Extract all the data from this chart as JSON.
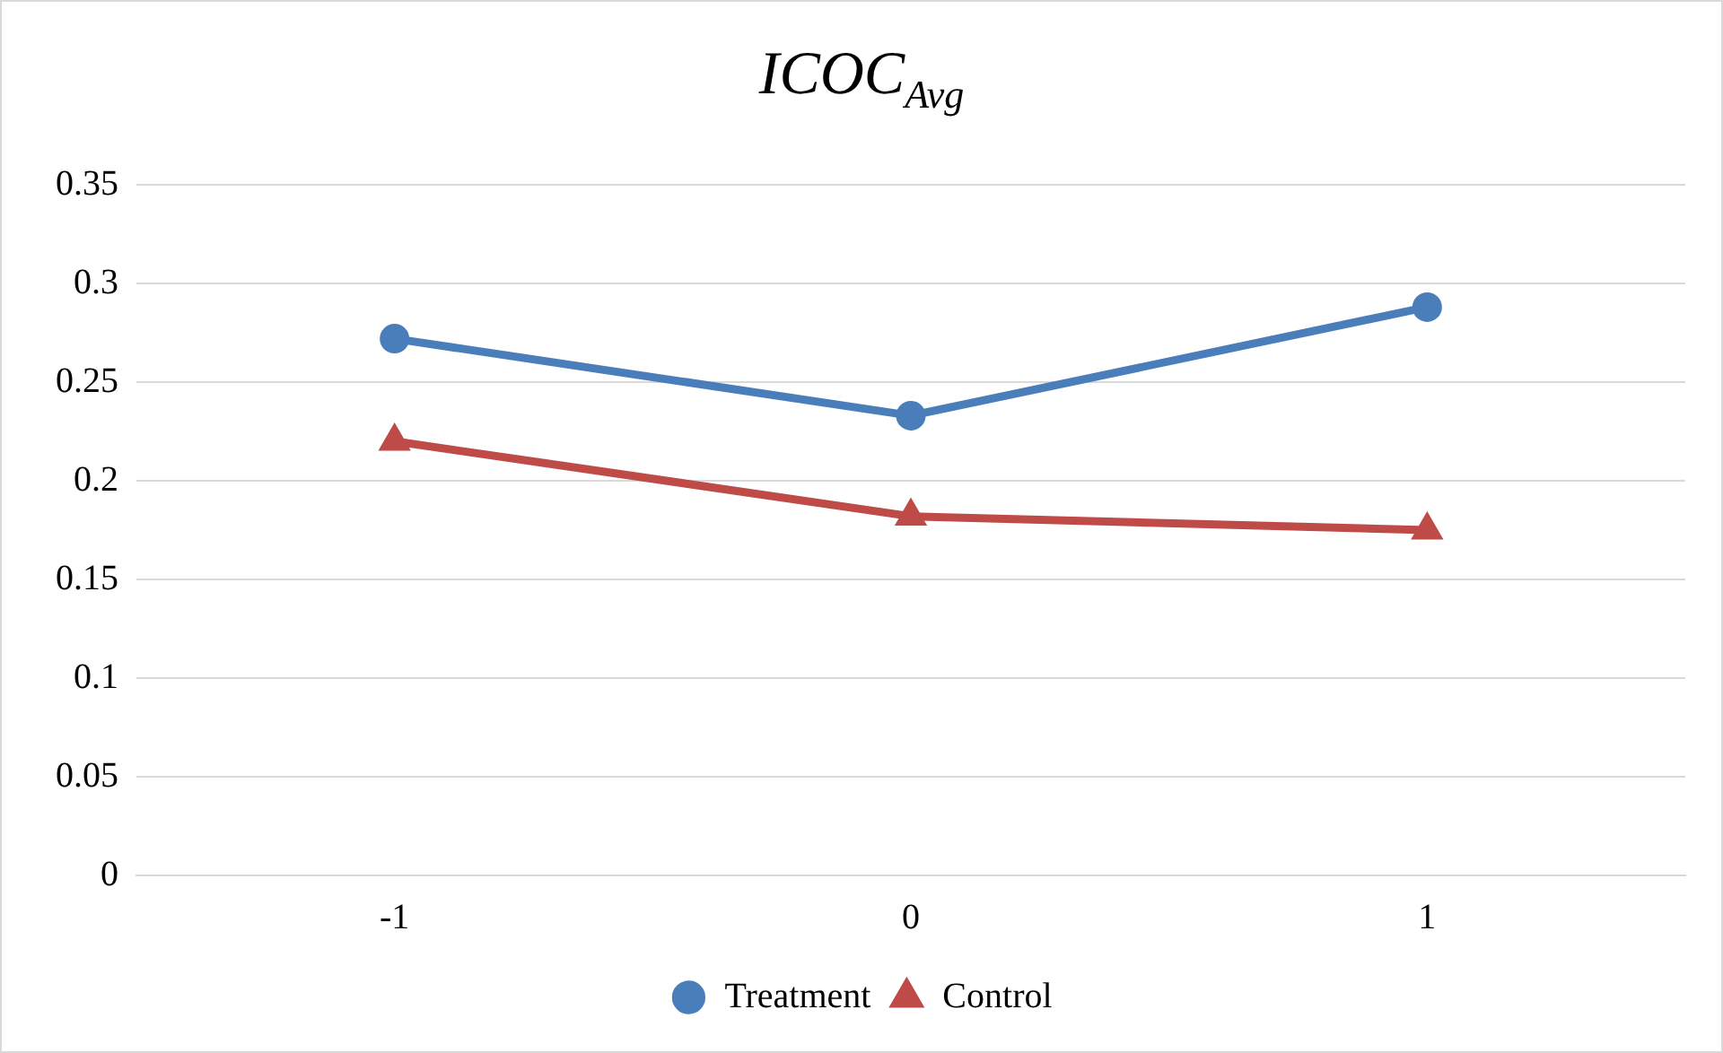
{
  "chart_data": {
    "type": "line",
    "title": "ICOC$_{Avg}$",
    "categories": [
      "-1",
      "0",
      "1"
    ],
    "series": [
      {
        "name": "Treatment",
        "color": "#4a7ebb",
        "marker": "circle",
        "values": [
          0.272,
          0.233,
          0.288
        ]
      },
      {
        "name": "Control",
        "color": "#be4b48",
        "marker": "triangle",
        "values": [
          0.22,
          0.182,
          0.175
        ]
      }
    ],
    "ylim": [
      0,
      0.35
    ],
    "yticks": [
      0,
      0.05,
      0.1,
      0.15,
      0.2,
      0.25,
      0.3,
      0.35
    ],
    "grid": "y",
    "legend": "bottom"
  }
}
